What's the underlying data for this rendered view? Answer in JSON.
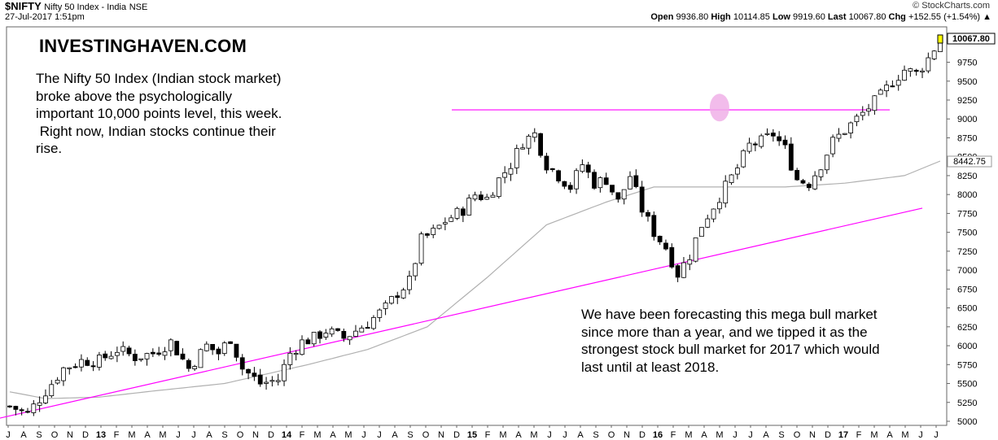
{
  "header": {
    "symbol": "$NIFTY",
    "description": "Nifty 50 Index - India",
    "exchange": "NSE",
    "datetime": "27-Jul-2017 1:51pm",
    "credit": "© StockCharts.com"
  },
  "ohlc": {
    "open_label": "Open",
    "open": "9936.80",
    "high_label": "High",
    "high": "10114.85",
    "low_label": "Low",
    "low": "9919.60",
    "last_label": "Last",
    "last": "10067.80",
    "chg_label": "Chg",
    "chg": "+152.55 (+1.54%)",
    "arrow": "▲"
  },
  "brand": "INVESTINGHAVEN.COM",
  "note_left": [
    "The Nifty 50 Index (Indian stock market)",
    "broke above the psychologically",
    "important 10,000 points level, this week.",
    " Right now, Indian stocks continue their",
    "rise."
  ],
  "note_right": [
    "We have been forecasting this mega bull market",
    "since more than a year, and we tipped it as the",
    "strongest stock bull market for 2017 which would",
    "last until at least 2018."
  ],
  "chart_data": {
    "type": "candlestick",
    "ylim": [
      5000,
      10100
    ],
    "y_ticks": [
      5000,
      5250,
      5500,
      5750,
      6000,
      6250,
      6500,
      6750,
      7000,
      7250,
      7500,
      7750,
      8000,
      8250,
      8500,
      8750,
      9000,
      9250,
      9500,
      9750
    ],
    "x_labels": [
      "J",
      "A",
      "S",
      "O",
      "N",
      "D",
      "13",
      "F",
      "M",
      "A",
      "M",
      "J",
      "J",
      "A",
      "S",
      "O",
      "N",
      "D",
      "14",
      "F",
      "M",
      "A",
      "M",
      "J",
      "J",
      "A",
      "S",
      "O",
      "N",
      "D",
      "15",
      "F",
      "M",
      "A",
      "M",
      "J",
      "J",
      "A",
      "S",
      "O",
      "N",
      "D",
      "16",
      "F",
      "M",
      "A",
      "M",
      "J",
      "J",
      "A",
      "S",
      "O",
      "N",
      "D",
      "17",
      "F",
      "M",
      "A",
      "M",
      "J",
      "J"
    ],
    "bold_x_labels": [
      "13",
      "14",
      "15",
      "16",
      "17"
    ],
    "price_anchors": [
      [
        0,
        5200
      ],
      [
        3,
        5100
      ],
      [
        6,
        5400
      ],
      [
        9,
        5700
      ],
      [
        12,
        5800
      ],
      [
        15,
        5800
      ],
      [
        18,
        5950
      ],
      [
        21,
        5850
      ],
      [
        24,
        5900
      ],
      [
        27,
        6050
      ],
      [
        30,
        5700
      ],
      [
        33,
        6000
      ],
      [
        35,
        5900
      ],
      [
        37,
        6100
      ],
      [
        39,
        5700
      ],
      [
        42,
        5500
      ],
      [
        45,
        5550
      ],
      [
        47,
        5900
      ],
      [
        49,
        6050
      ],
      [
        51,
        6100
      ],
      [
        53,
        6200
      ],
      [
        56,
        6100
      ],
      [
        60,
        6300
      ],
      [
        63,
        6500
      ],
      [
        65,
        6700
      ],
      [
        67,
        6850
      ],
      [
        69,
        7400
      ],
      [
        71,
        7500
      ],
      [
        73,
        7650
      ],
      [
        76,
        7800
      ],
      [
        78,
        8000
      ],
      [
        80,
        7950
      ],
      [
        82,
        8200
      ],
      [
        84,
        8400
      ],
      [
        86,
        8700
      ],
      [
        88,
        8800
      ],
      [
        90,
        8400
      ],
      [
        92,
        8250
      ],
      [
        94,
        8100
      ],
      [
        96,
        8400
      ],
      [
        98,
        8150
      ],
      [
        100,
        8200
      ],
      [
        102,
        7900
      ],
      [
        104,
        8250
      ],
      [
        106,
        7800
      ],
      [
        108,
        7500
      ],
      [
        110,
        7300
      ],
      [
        112,
        6950
      ],
      [
        114,
        7200
      ],
      [
        116,
        7600
      ],
      [
        118,
        7850
      ],
      [
        120,
        8100
      ],
      [
        122,
        8350
      ],
      [
        124,
        8650
      ],
      [
        126,
        8700
      ],
      [
        128,
        8800
      ],
      [
        130,
        8600
      ],
      [
        132,
        8200
      ],
      [
        134,
        8150
      ],
      [
        136,
        8400
      ],
      [
        138,
        8700
      ],
      [
        140,
        8850
      ],
      [
        142,
        9000
      ],
      [
        144,
        9150
      ],
      [
        146,
        9300
      ],
      [
        148,
        9500
      ],
      [
        150,
        9650
      ],
      [
        152,
        9600
      ],
      [
        154,
        9800
      ],
      [
        156,
        10067.8
      ]
    ],
    "moving_average_last": 8442.75,
    "moving_average_anchors": [
      [
        0,
        5390
      ],
      [
        6,
        5300
      ],
      [
        15,
        5320
      ],
      [
        24,
        5400
      ],
      [
        36,
        5500
      ],
      [
        50,
        5750
      ],
      [
        60,
        5950
      ],
      [
        70,
        6250
      ],
      [
        80,
        6900
      ],
      [
        90,
        7600
      ],
      [
        100,
        7900
      ],
      [
        108,
        8100
      ],
      [
        120,
        8100
      ],
      [
        130,
        8100
      ],
      [
        140,
        8150
      ],
      [
        150,
        8250
      ],
      [
        156,
        8442.75
      ]
    ],
    "last_price_label": "10067.80",
    "ma_label": "8442.75",
    "resistance_line": {
      "value": 9120
    },
    "support_line": {
      "from": [
        -4,
        5000
      ],
      "to": [
        153,
        7820
      ]
    },
    "breakout_marker": {
      "at": [
        119,
        9150
      ]
    },
    "colors": {
      "up": "#ffffff",
      "down": "#000000",
      "ma": "#b0b0b0",
      "lines": "#ff00ff",
      "highlight": "#f0b0e8",
      "last_label_bg": "#ffff00"
    }
  }
}
